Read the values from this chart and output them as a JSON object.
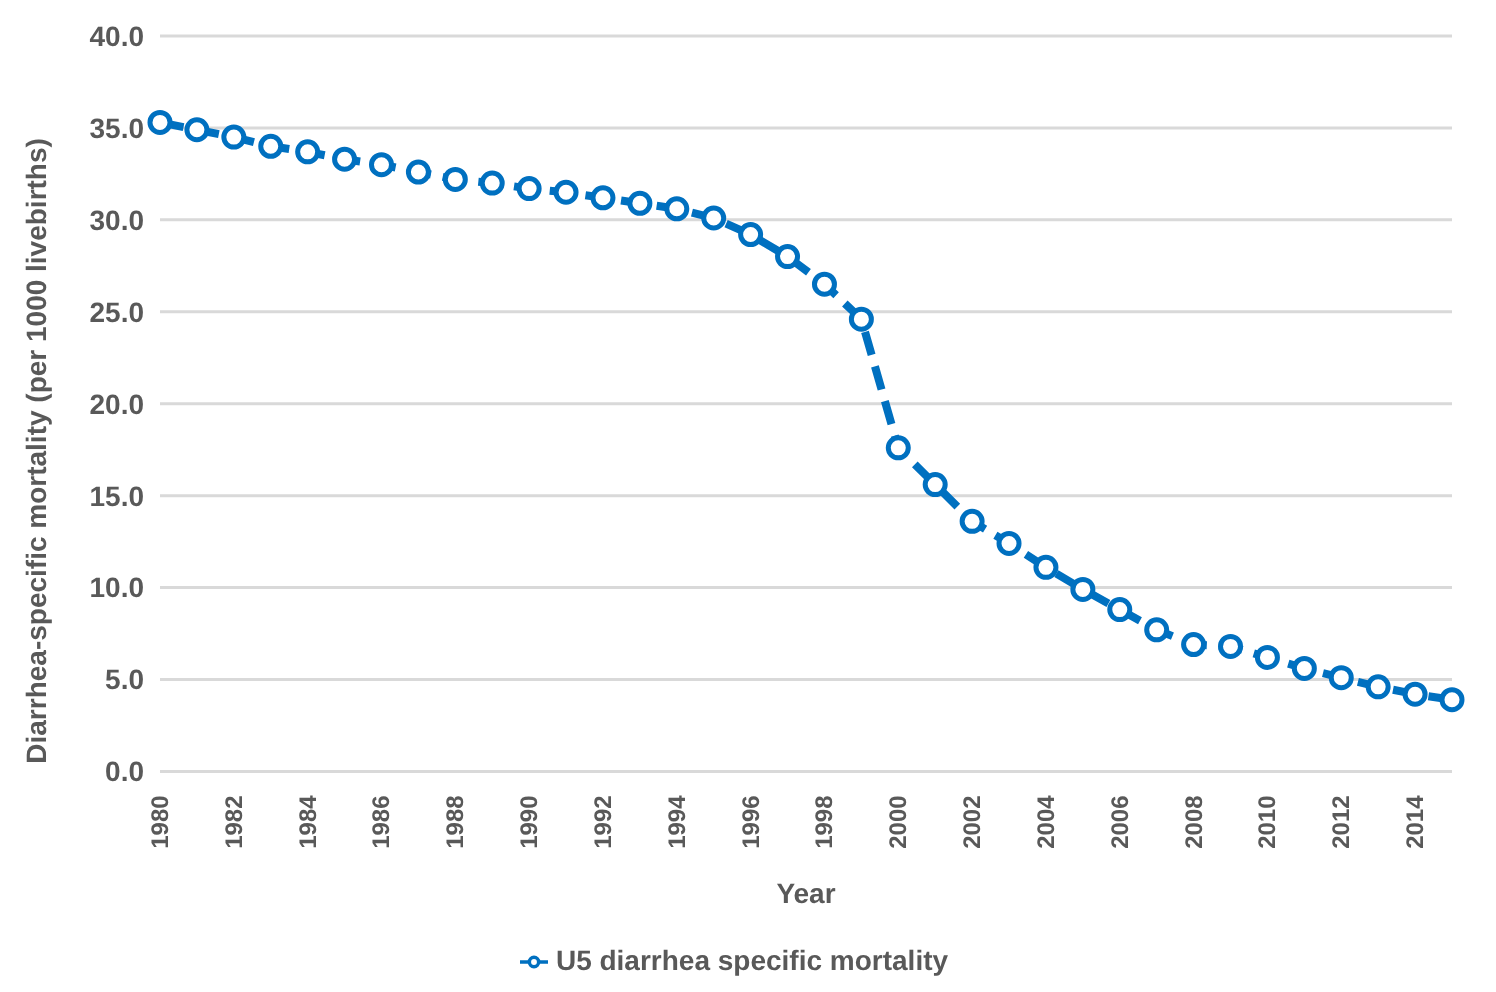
{
  "chart_data": {
    "type": "line",
    "xlabel": "Year",
    "ylabel": "Diarrhea-specific mortality (per 1000 livebirths)",
    "categories": [
      "1980",
      null,
      "1982",
      null,
      "1984",
      null,
      "1986",
      null,
      "1988",
      null,
      "1990",
      null,
      "1992",
      null,
      "1994",
      null,
      "1996",
      null,
      "1998",
      null,
      "2000",
      null,
      "2002",
      null,
      "2004",
      null,
      "2006",
      null,
      "2008",
      null,
      "2010",
      null,
      "2012",
      null,
      "2014",
      null
    ],
    "series": [
      {
        "name": "U5 diarrhea specific mortality",
        "color": "#0070c0",
        "values": [
          35.3,
          34.9,
          34.5,
          34.0,
          33.7,
          33.3,
          33.0,
          32.6,
          32.2,
          32.0,
          31.7,
          31.5,
          31.2,
          30.9,
          30.6,
          30.1,
          29.2,
          28.0,
          26.5,
          24.6,
          17.6,
          15.6,
          13.6,
          12.4,
          11.1,
          9.9,
          8.8,
          7.7,
          6.9,
          6.8,
          6.2,
          5.6,
          5.1,
          4.6,
          4.2,
          3.9
        ]
      }
    ],
    "ylim": [
      0,
      40
    ],
    "yticks": [
      {
        "value": 0,
        "label": "0.0"
      },
      {
        "value": 5,
        "label": "5.0"
      },
      {
        "value": 10,
        "label": "10.0"
      },
      {
        "value": 15,
        "label": "15.0"
      },
      {
        "value": 20,
        "label": "20.0"
      },
      {
        "value": 25,
        "label": "25.0"
      },
      {
        "value": 30,
        "label": "30.0"
      },
      {
        "value": 35,
        "label": "35.0"
      },
      {
        "value": 40,
        "label": "40.0"
      }
    ],
    "grid": "y",
    "legend": "bottom",
    "marker": "circle",
    "line_style": "dashed"
  }
}
